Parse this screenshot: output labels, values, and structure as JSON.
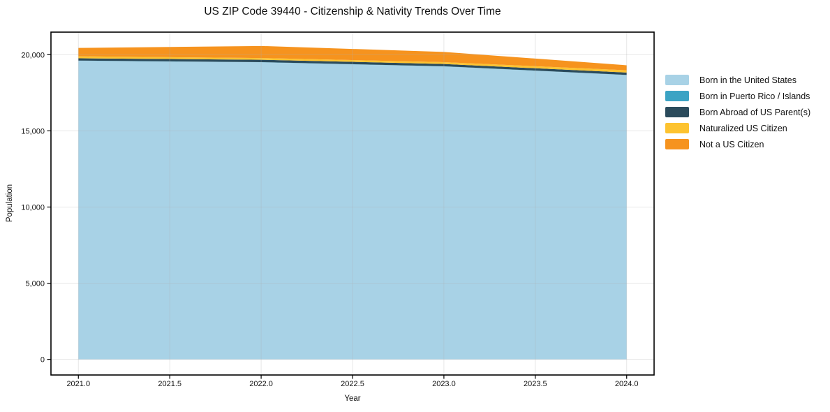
{
  "figure": {
    "title": "US ZIP Code 39440 - Citizenship & Nativity Trends Over Time"
  },
  "chart_data": {
    "type": "area",
    "stacked": true,
    "title": "US ZIP Code 39440 - Citizenship & Nativity Trends Over Time",
    "xlabel": "Year",
    "ylabel": "Population",
    "x": [
      2021,
      2022,
      2023,
      2024
    ],
    "series": [
      {
        "name": "Born in the United States",
        "color": "#a8d2e6",
        "values": [
          19600,
          19500,
          19230,
          18660
        ]
      },
      {
        "name": "Born in Puerto Rico / Islands",
        "color": "#3ba3c4",
        "values": [
          10,
          10,
          10,
          10
        ]
      },
      {
        "name": "Born Abroad of US Parent(s)",
        "color": "#2b4b5c",
        "values": [
          150,
          155,
          150,
          155
        ]
      },
      {
        "name": "Naturalized US Citizen",
        "color": "#fdc330",
        "values": [
          130,
          115,
          120,
          150
        ]
      },
      {
        "name": "Not a US Citizen",
        "color": "#f6931e",
        "values": [
          550,
          790,
          670,
          330
        ]
      }
    ],
    "xlim": [
      2020.85,
      2024.15
    ],
    "ylim": [
      -1023,
      21479
    ],
    "xticks": [
      2021.0,
      2021.5,
      2022.0,
      2022.5,
      2023.0,
      2023.5,
      2024.0
    ],
    "yticks": [
      0,
      5000,
      10000,
      15000,
      20000
    ],
    "xtick_labels": [
      "2021.0",
      "2021.5",
      "2022.0",
      "2022.5",
      "2023.0",
      "2023.5",
      "2024.0"
    ],
    "ytick_labels": [
      "0",
      "5,000",
      "10,000",
      "15,000",
      "20,000"
    ],
    "grid": true,
    "grid_color": "#b0b0b0",
    "grid_alpha": 0.3,
    "spine_color": "#000000",
    "legend_position": "right"
  }
}
